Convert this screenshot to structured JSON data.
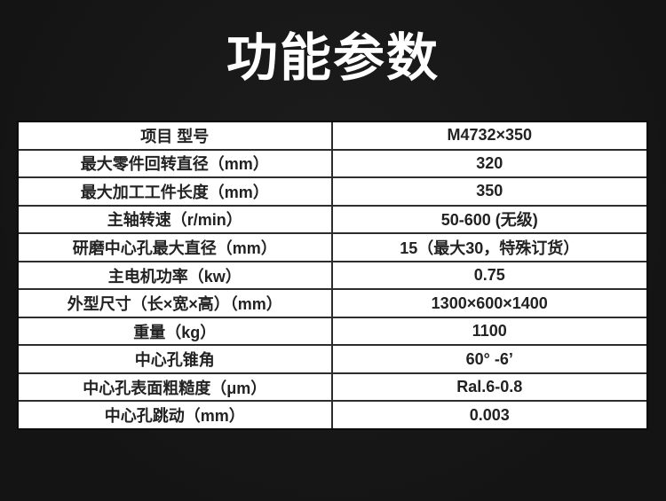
{
  "page": {
    "title": "功能参数"
  },
  "theme": {
    "bg": "#141414",
    "bg-light": "#1d1d1d",
    "title-color": "#ffffff",
    "cell-bg": "#ffffff",
    "line-color": "#2d2d2d",
    "outer-border": "#0c0c0c",
    "text-color": "#222222"
  },
  "table": {
    "rows": [
      {
        "label": "项目 型号",
        "value": "M4732×350"
      },
      {
        "label": "最大零件回转直径（mm）",
        "value": "320"
      },
      {
        "label": "最大加工工件长度（mm）",
        "value": "350"
      },
      {
        "label": "主轴转速（r/min）",
        "value": "50-600 (无级)"
      },
      {
        "label": "研磨中心孔最大直径（mm）",
        "value": "15（最大30，特殊订货）"
      },
      {
        "label": "主电机功率（kw）",
        "value": "0.75"
      },
      {
        "label": "外型尺寸（长×宽×高）（mm）",
        "value": "1300×600×1400"
      },
      {
        "label": "重量（kg）",
        "value": "1100"
      },
      {
        "label": "中心孔锥角",
        "value": "60° -6’"
      },
      {
        "label": "中心孔表面粗糙度（μm）",
        "value": "Ral.6-0.8"
      },
      {
        "label": "中心孔跳动（mm）",
        "value": "0.003"
      }
    ]
  }
}
